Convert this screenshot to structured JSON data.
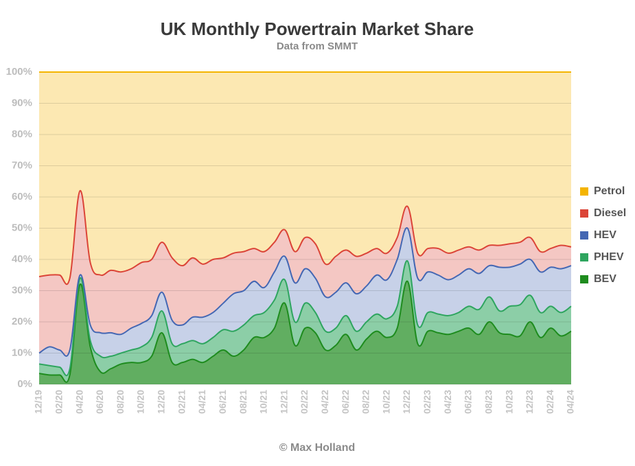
{
  "chart_data": {
    "type": "stacked-area",
    "title": "UK Monthly Powertrain Market Share",
    "subtitle": "Data from SMMT",
    "credit": "© Max Holland",
    "categories": [
      "12/19",
      null,
      "02/20",
      null,
      "04/20",
      null,
      "06/20",
      null,
      "08/20",
      null,
      "10/20",
      null,
      "12/20",
      null,
      "02/21",
      null,
      "04/21",
      null,
      "06/21",
      null,
      "08/21",
      null,
      "10/21",
      null,
      "12/21",
      null,
      "02/22",
      null,
      "04/22",
      null,
      "06/22",
      null,
      "08/22",
      null,
      "10/22",
      null,
      "12/22",
      null,
      "02/23",
      null,
      "04/23",
      null,
      "06/23",
      null,
      "08/23",
      null,
      "10/23",
      null,
      "12/23",
      null,
      "02/24",
      null,
      "04/24"
    ],
    "series": [
      {
        "name": "Petrol",
        "color": "#f4b400",
        "values": [
          65.5,
          65,
          65,
          66,
          38,
          61,
          65,
          63.5,
          64,
          63,
          61,
          60,
          54.5,
          59.5,
          62,
          59.5,
          61.5,
          60,
          59.5,
          58,
          57.5,
          56.5,
          57.5,
          54.5,
          50.5,
          57.5,
          53,
          55,
          61.5,
          59,
          57,
          59,
          58,
          56.5,
          58,
          53,
          43,
          58,
          56.5,
          56.5,
          58,
          57,
          56,
          57,
          55.5,
          55.5,
          55,
          54.5,
          53,
          57.5,
          56.5,
          55.5,
          56
        ]
      },
      {
        "name": "Diesel",
        "color": "#db4437",
        "values": [
          24.5,
          23,
          24,
          23,
          27,
          20,
          18.5,
          20,
          20,
          19,
          19.5,
          18,
          16,
          20,
          19,
          19,
          17,
          17,
          14.5,
          13,
          12.5,
          10.5,
          11.5,
          9.5,
          8.5,
          10,
          10,
          11,
          10.5,
          11.5,
          10.5,
          12,
          10.5,
          8.5,
          8.5,
          7,
          7,
          8,
          7.5,
          8.5,
          8.5,
          8,
          7,
          7.5,
          6.5,
          7,
          7.5,
          7,
          7,
          6.5,
          6,
          7.5,
          6
        ]
      },
      {
        "name": "HEV",
        "color": "#4467b3",
        "values": [
          3.5,
          6,
          5.5,
          6,
          1,
          5,
          7.5,
          7.5,
          6,
          7,
          7.5,
          7,
          6,
          7.5,
          6,
          7.5,
          8.5,
          8,
          8.5,
          12,
          11,
          11,
          8,
          9,
          7.5,
          12.5,
          11,
          11,
          11,
          11.5,
          10.5,
          12,
          11.5,
          12.5,
          12.5,
          15,
          10.5,
          15,
          13,
          12.5,
          11.5,
          12,
          12,
          11.5,
          10,
          14,
          12.5,
          13,
          11.5,
          13,
          12.5,
          14,
          13
        ]
      },
      {
        "name": "PHEV",
        "color": "#2ea55f",
        "values": [
          3,
          3,
          2.5,
          2,
          2,
          2,
          5,
          4,
          3.5,
          4,
          5,
          6,
          7,
          6,
          6,
          6,
          6,
          6,
          6.5,
          8,
          8,
          7,
          8,
          9,
          7.5,
          7.5,
          8,
          6.5,
          6,
          5.5,
          6,
          6,
          5.5,
          5.5,
          6,
          7,
          6.5,
          6,
          6,
          6,
          6,
          6,
          7,
          8,
          8,
          7,
          9,
          10,
          8.5,
          8,
          7,
          7.5,
          8
        ]
      },
      {
        "name": "BEV",
        "color": "#1e8c1e",
        "values": [
          3.5,
          3,
          3,
          3,
          32,
          12,
          4,
          5,
          6.5,
          7,
          7,
          9,
          16.5,
          7,
          7,
          8,
          7,
          9,
          11,
          9,
          11,
          15,
          15,
          18,
          26,
          12.5,
          18,
          16.5,
          11,
          12.5,
          16,
          11,
          14.5,
          17,
          15,
          18,
          33,
          13,
          17,
          16.5,
          16,
          17,
          18,
          16,
          20,
          16.5,
          16,
          15.5,
          20,
          15,
          18,
          15.5,
          17
        ]
      }
    ],
    "ylim": [
      0,
      100
    ],
    "yticks": [
      {
        "value": 0,
        "label": "0%"
      },
      {
        "value": 10,
        "label": "10%"
      },
      {
        "value": 20,
        "label": "20%"
      },
      {
        "value": 30,
        "label": "30%"
      },
      {
        "value": 40,
        "label": "40%"
      },
      {
        "value": 50,
        "label": "50%"
      },
      {
        "value": 60,
        "label": "60%"
      },
      {
        "value": 70,
        "label": "70%"
      },
      {
        "value": 80,
        "label": "80%"
      },
      {
        "value": 90,
        "label": "90%"
      },
      {
        "value": 100,
        "label": "100%"
      }
    ],
    "grid": true,
    "legend": "right"
  }
}
